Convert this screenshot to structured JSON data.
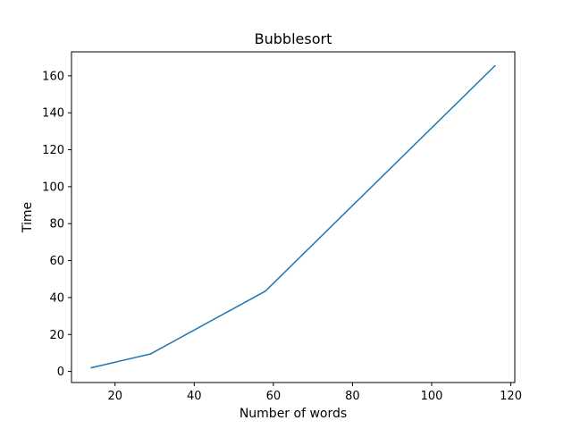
{
  "chart_data": {
    "type": "line",
    "title": "Bubblesort",
    "xlabel": "Number of words",
    "ylabel": "Time",
    "xlim": [
      9,
      121
    ],
    "ylim": [
      -6,
      173
    ],
    "xticks": [
      20,
      40,
      60,
      80,
      100,
      120
    ],
    "yticks": [
      0,
      20,
      40,
      60,
      80,
      100,
      120,
      140,
      160
    ],
    "grid": false,
    "series": [
      {
        "color": "#1f77b4",
        "x": [
          14,
          29,
          58,
          116
        ],
        "y": [
          2,
          9.5,
          43.5,
          165.5
        ]
      }
    ]
  }
}
